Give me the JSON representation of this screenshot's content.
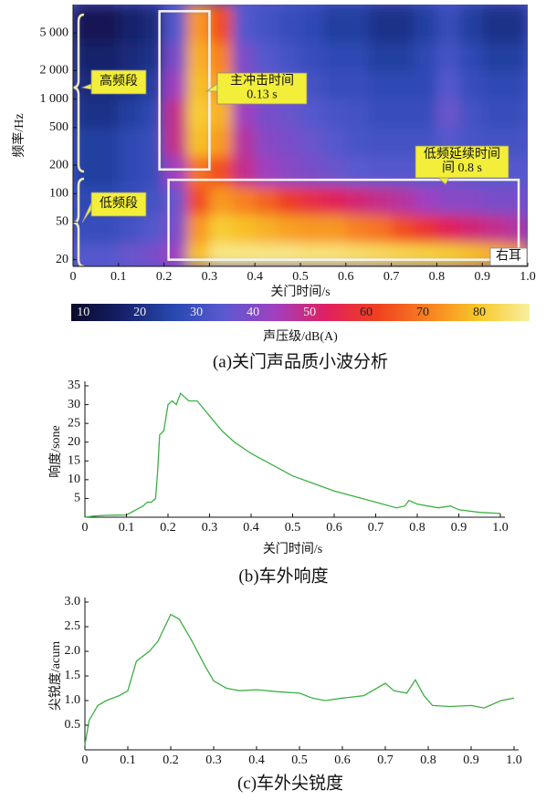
{
  "chart_data": [
    {
      "type": "heatmap",
      "caption": "(a)关门声品质小波分析",
      "xlabel": "关门时间/s",
      "ylabel": "频率/Hz",
      "xlim": [
        0,
        1
      ],
      "xticks": [
        0,
        0.1,
        0.2,
        0.3,
        0.4,
        0.5,
        0.6,
        0.7,
        0.8,
        0.9,
        {
          "value": 1,
          "label": "1.0"
        }
      ],
      "ylim": [
        17,
        10000
      ],
      "ylog": true,
      "yticks": [
        20,
        50,
        100,
        200,
        500,
        {
          "value": 1000,
          "label": "1 000"
        },
        {
          "value": 2000,
          "label": "2 000"
        },
        {
          "value": 5000,
          "label": "5 000"
        }
      ],
      "time_edges": [
        0,
        0.05,
        0.1,
        0.15,
        0.2,
        0.25,
        0.3,
        0.35,
        0.4,
        0.45,
        0.5,
        0.55,
        0.6,
        0.65,
        0.7,
        0.75,
        0.8,
        0.85,
        0.9,
        0.95,
        1
      ],
      "freq_edges": [
        17,
        30,
        60,
        120,
        250,
        500,
        1000,
        2000,
        4000,
        10000
      ],
      "values": [
        [
          35,
          35,
          38,
          40,
          45,
          80,
          88,
          88,
          88,
          88,
          87,
          87,
          86,
          85,
          84,
          83,
          82,
          80,
          78,
          75
        ],
        [
          30,
          30,
          32,
          35,
          40,
          75,
          82,
          80,
          78,
          76,
          75,
          75,
          72,
          70,
          65,
          60,
          55,
          52,
          50,
          48
        ],
        [
          28,
          28,
          30,
          32,
          38,
          65,
          75,
          72,
          68,
          62,
          58,
          55,
          52,
          50,
          48,
          45,
          42,
          42,
          40,
          40
        ],
        [
          25,
          25,
          28,
          30,
          45,
          70,
          65,
          50,
          45,
          42,
          40,
          38,
          36,
          35,
          35,
          35,
          38,
          35,
          35,
          35
        ],
        [
          25,
          25,
          28,
          30,
          50,
          80,
          75,
          48,
          42,
          40,
          38,
          35,
          33,
          32,
          32,
          32,
          35,
          33,
          32,
          32
        ],
        [
          22,
          22,
          25,
          28,
          50,
          82,
          78,
          45,
          40,
          38,
          35,
          33,
          32,
          30,
          30,
          30,
          38,
          32,
          30,
          30
        ],
        [
          20,
          20,
          22,
          25,
          45,
          80,
          75,
          42,
          38,
          35,
          32,
          30,
          30,
          28,
          28,
          28,
          35,
          30,
          28,
          28
        ],
        [
          18,
          18,
          20,
          22,
          40,
          78,
          72,
          40,
          35,
          32,
          30,
          28,
          28,
          25,
          25,
          28,
          32,
          28,
          25,
          25
        ],
        [
          15,
          15,
          18,
          20,
          35,
          75,
          65,
          35,
          32,
          30,
          28,
          25,
          25,
          22,
          22,
          25,
          30,
          25,
          22,
          22
        ]
      ],
      "clim": [
        9,
        90
      ],
      "cticks": [
        10,
        20,
        30,
        40,
        50,
        60,
        70,
        80
      ],
      "colorbar_label": "声压级/dB(A)",
      "colormap": [
        "#0a0a2a",
        "#16206a",
        "#2848b0",
        "#5a5ad0",
        "#a040c0",
        "#e02060",
        "#f04020",
        "#f88020",
        "#f8c828",
        "#f8f0a0"
      ],
      "regions": [
        {
          "x": [
            0.19,
            0.3
          ],
          "y": [
            180,
            8500
          ]
        },
        {
          "x": [
            0.21,
            0.98
          ],
          "y": [
            20,
            140
          ]
        }
      ],
      "annotations": [
        {
          "lines": [
            "高频段"
          ]
        },
        {
          "lines": [
            "主冲击时间",
            "0.13 s"
          ]
        },
        {
          "lines": [
            "低频延续时间",
            "间 0.8 s"
          ]
        },
        {
          "lines": [
            "低频段"
          ]
        },
        {
          "lines": [
            "右耳"
          ]
        }
      ]
    },
    {
      "type": "line",
      "caption": "(b)车外响度",
      "xlabel": "关门时间/s",
      "ylabel": "响度/sone",
      "color": "#3cb043",
      "xlim": [
        0,
        1
      ],
      "xticks": [
        0,
        0.1,
        0.2,
        0.3,
        0.4,
        0.5,
        0.6,
        0.7,
        0.8,
        0.9,
        {
          "value": 1,
          "label": "1.0"
        }
      ],
      "ylim": [
        0,
        35
      ],
      "yticks": [
        5,
        10,
        15,
        20,
        25,
        30,
        35
      ],
      "x": [
        0,
        0.02,
        0.05,
        0.1,
        0.14,
        0.15,
        0.16,
        0.17,
        0.175,
        0.18,
        0.19,
        0.2,
        0.21,
        0.22,
        0.23,
        0.24,
        0.25,
        0.27,
        0.3,
        0.33,
        0.36,
        0.4,
        0.45,
        0.5,
        0.55,
        0.6,
        0.65,
        0.7,
        0.75,
        0.77,
        0.78,
        0.8,
        0.85,
        0.88,
        0.9,
        0.95,
        1.0
      ],
      "values": [
        0,
        0.3,
        0.5,
        0.6,
        3,
        4,
        4,
        5,
        12,
        22,
        23,
        30,
        31,
        30,
        33,
        32,
        31,
        31,
        27,
        23,
        20,
        17,
        14,
        11,
        9,
        7,
        5.5,
        4,
        2.5,
        3,
        4.5,
        3.5,
        2.5,
        3,
        2,
        1.3,
        1
      ]
    },
    {
      "type": "line",
      "caption": "(c)车外尖锐度",
      "ylabel": "尖锐度/acum",
      "color": "#3cb043",
      "xlim": [
        0,
        1
      ],
      "xticks": [
        0,
        0.1,
        0.2,
        0.3,
        0.4,
        0.5,
        0.6,
        0.7,
        0.8,
        0.9,
        {
          "value": 1,
          "label": "1.0"
        }
      ],
      "ylim": [
        0,
        3
      ],
      "yticks": [
        0.5,
        {
          "value": 1,
          "label": "1.0"
        },
        1.5,
        {
          "value": 2,
          "label": "2.0"
        },
        2.5,
        {
          "value": 3,
          "label": "3.0"
        }
      ],
      "x": [
        0,
        0.01,
        0.03,
        0.05,
        0.08,
        0.1,
        0.12,
        0.15,
        0.17,
        0.2,
        0.22,
        0.25,
        0.28,
        0.3,
        0.33,
        0.36,
        0.4,
        0.45,
        0.5,
        0.53,
        0.56,
        0.6,
        0.65,
        0.68,
        0.7,
        0.72,
        0.75,
        0.77,
        0.79,
        0.81,
        0.85,
        0.9,
        0.93,
        0.97,
        1.0
      ],
      "values": [
        0.1,
        0.6,
        0.9,
        1.0,
        1.1,
        1.2,
        1.8,
        2.0,
        2.2,
        2.75,
        2.65,
        2.2,
        1.7,
        1.4,
        1.25,
        1.2,
        1.22,
        1.18,
        1.15,
        1.05,
        1.0,
        1.05,
        1.1,
        1.25,
        1.35,
        1.2,
        1.15,
        1.42,
        1.1,
        0.9,
        0.88,
        0.9,
        0.85,
        1.0,
        1.05
      ]
    }
  ]
}
